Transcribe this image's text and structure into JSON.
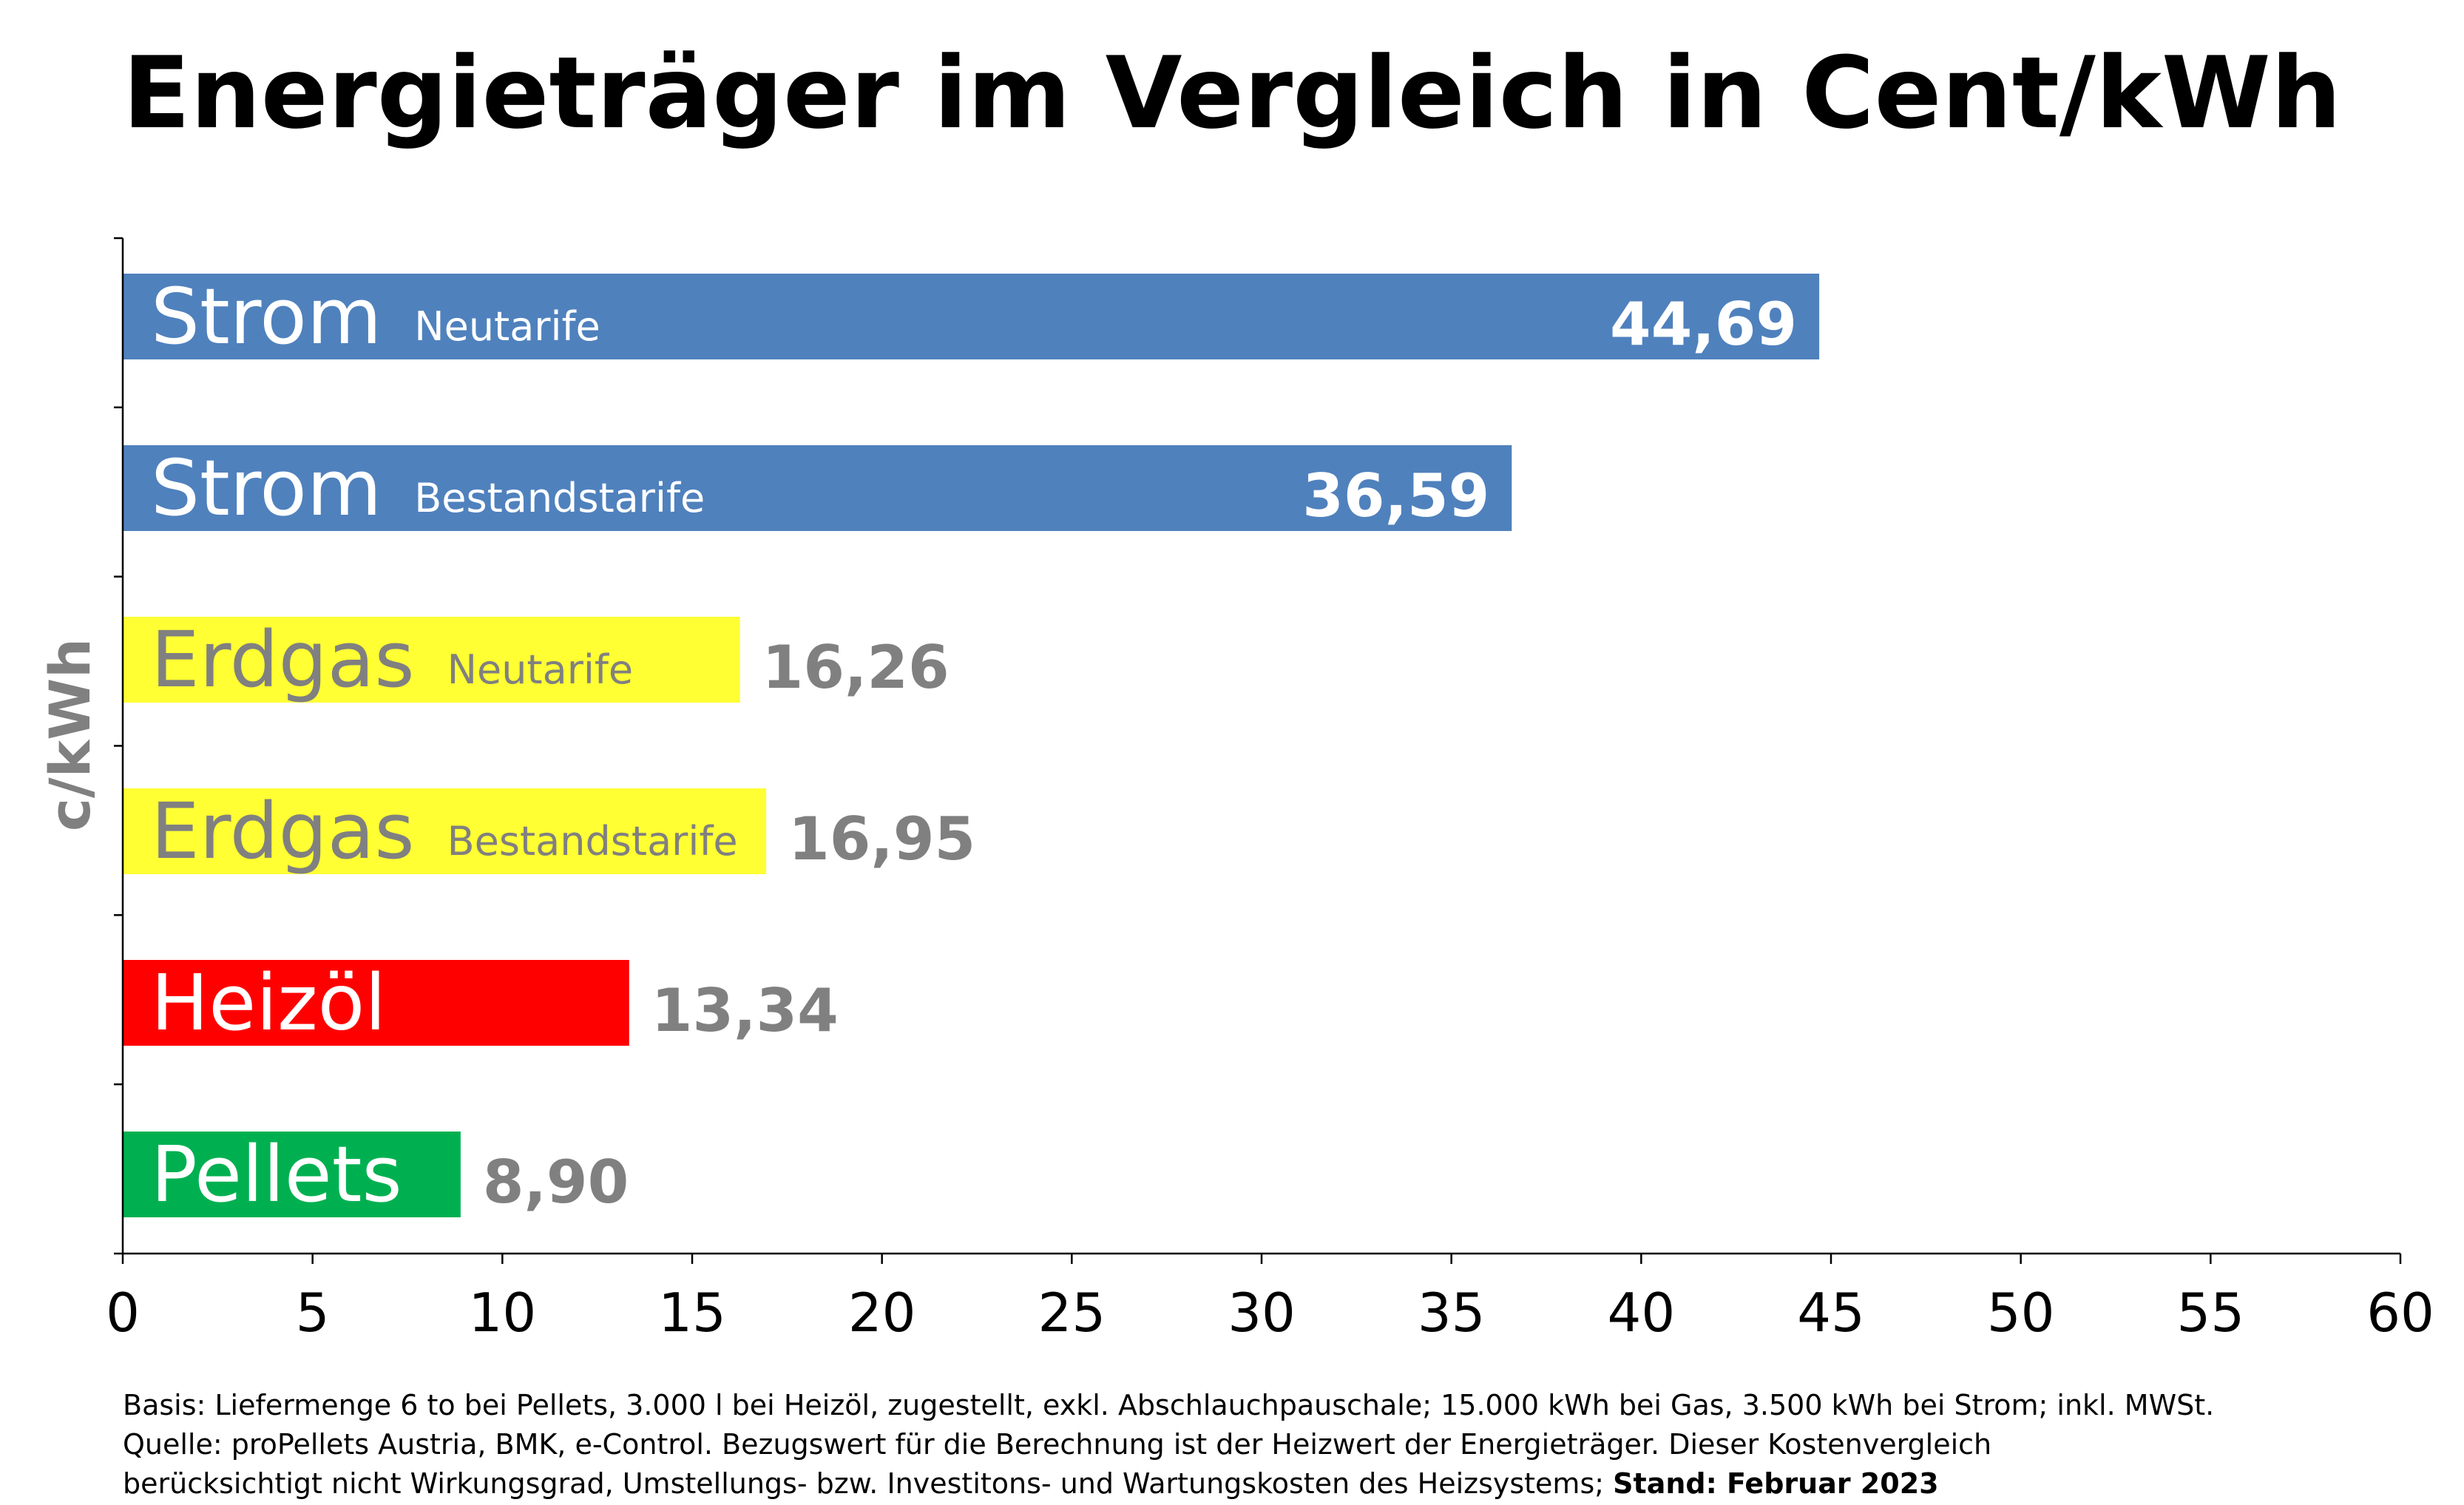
{
  "chart_data": {
    "type": "bar",
    "orientation": "horizontal",
    "title": "Energieträger im Vergleich in Cent/kWh",
    "ylabel": "c/kWh",
    "xlim": [
      0,
      60
    ],
    "xticks": [
      0,
      5,
      10,
      15,
      20,
      25,
      30,
      35,
      40,
      45,
      50,
      55,
      60
    ],
    "grid": false,
    "bars": [
      {
        "name": "Strom",
        "subname": "Neutarife",
        "value": 44.69,
        "value_label": "44,69",
        "color": "#4f81bd",
        "name_color": "#ffffff",
        "value_color": "#ffffff",
        "value_inside": true
      },
      {
        "name": "Strom",
        "subname": "Bestandstarife",
        "value": 36.59,
        "value_label": "36,59",
        "color": "#4f81bd",
        "name_color": "#ffffff",
        "value_color": "#ffffff",
        "value_inside": true
      },
      {
        "name": "Erdgas",
        "subname": "Neutarife",
        "value": 16.26,
        "value_label": "16,26",
        "color": "#ffff33",
        "name_color": "#808080",
        "value_color": "#808080",
        "value_inside": false
      },
      {
        "name": "Erdgas",
        "subname": "Bestandstarife",
        "value": 16.95,
        "value_label": "16,95",
        "color": "#ffff33",
        "name_color": "#808080",
        "value_color": "#808080",
        "value_inside": false
      },
      {
        "name": "Heizöl",
        "subname": "",
        "value": 13.34,
        "value_label": "13,34",
        "color": "#ff0000",
        "name_color": "#ffffff",
        "value_color": "#808080",
        "value_inside": false
      },
      {
        "name": "Pellets",
        "subname": "",
        "value": 8.9,
        "value_label": "8,90",
        "color": "#00b050",
        "name_color": "#ffffff",
        "value_color": "#808080",
        "value_inside": false
      }
    ]
  },
  "footnote": {
    "line1": "Basis: Liefermenge 6 to bei Pellets, 3.000 l bei Heizöl, zugestellt, exkl. Abschlauchpauschale; 15.000 kWh bei Gas, 3.500 kWh bei Strom; inkl. MWSt.",
    "line2": "Quelle: proPellets Austria, BMK, e-Control. Bezugswert für die Berechnung ist der Heizwert der Energieträger. Dieser Kostenvergleich",
    "line3": "berücksichtigt nicht Wirkungsgrad, Umstellungs- bzw. Investitons- und Wartungskosten des Heizsystems;",
    "stand": "Stand: Februar 2023"
  }
}
